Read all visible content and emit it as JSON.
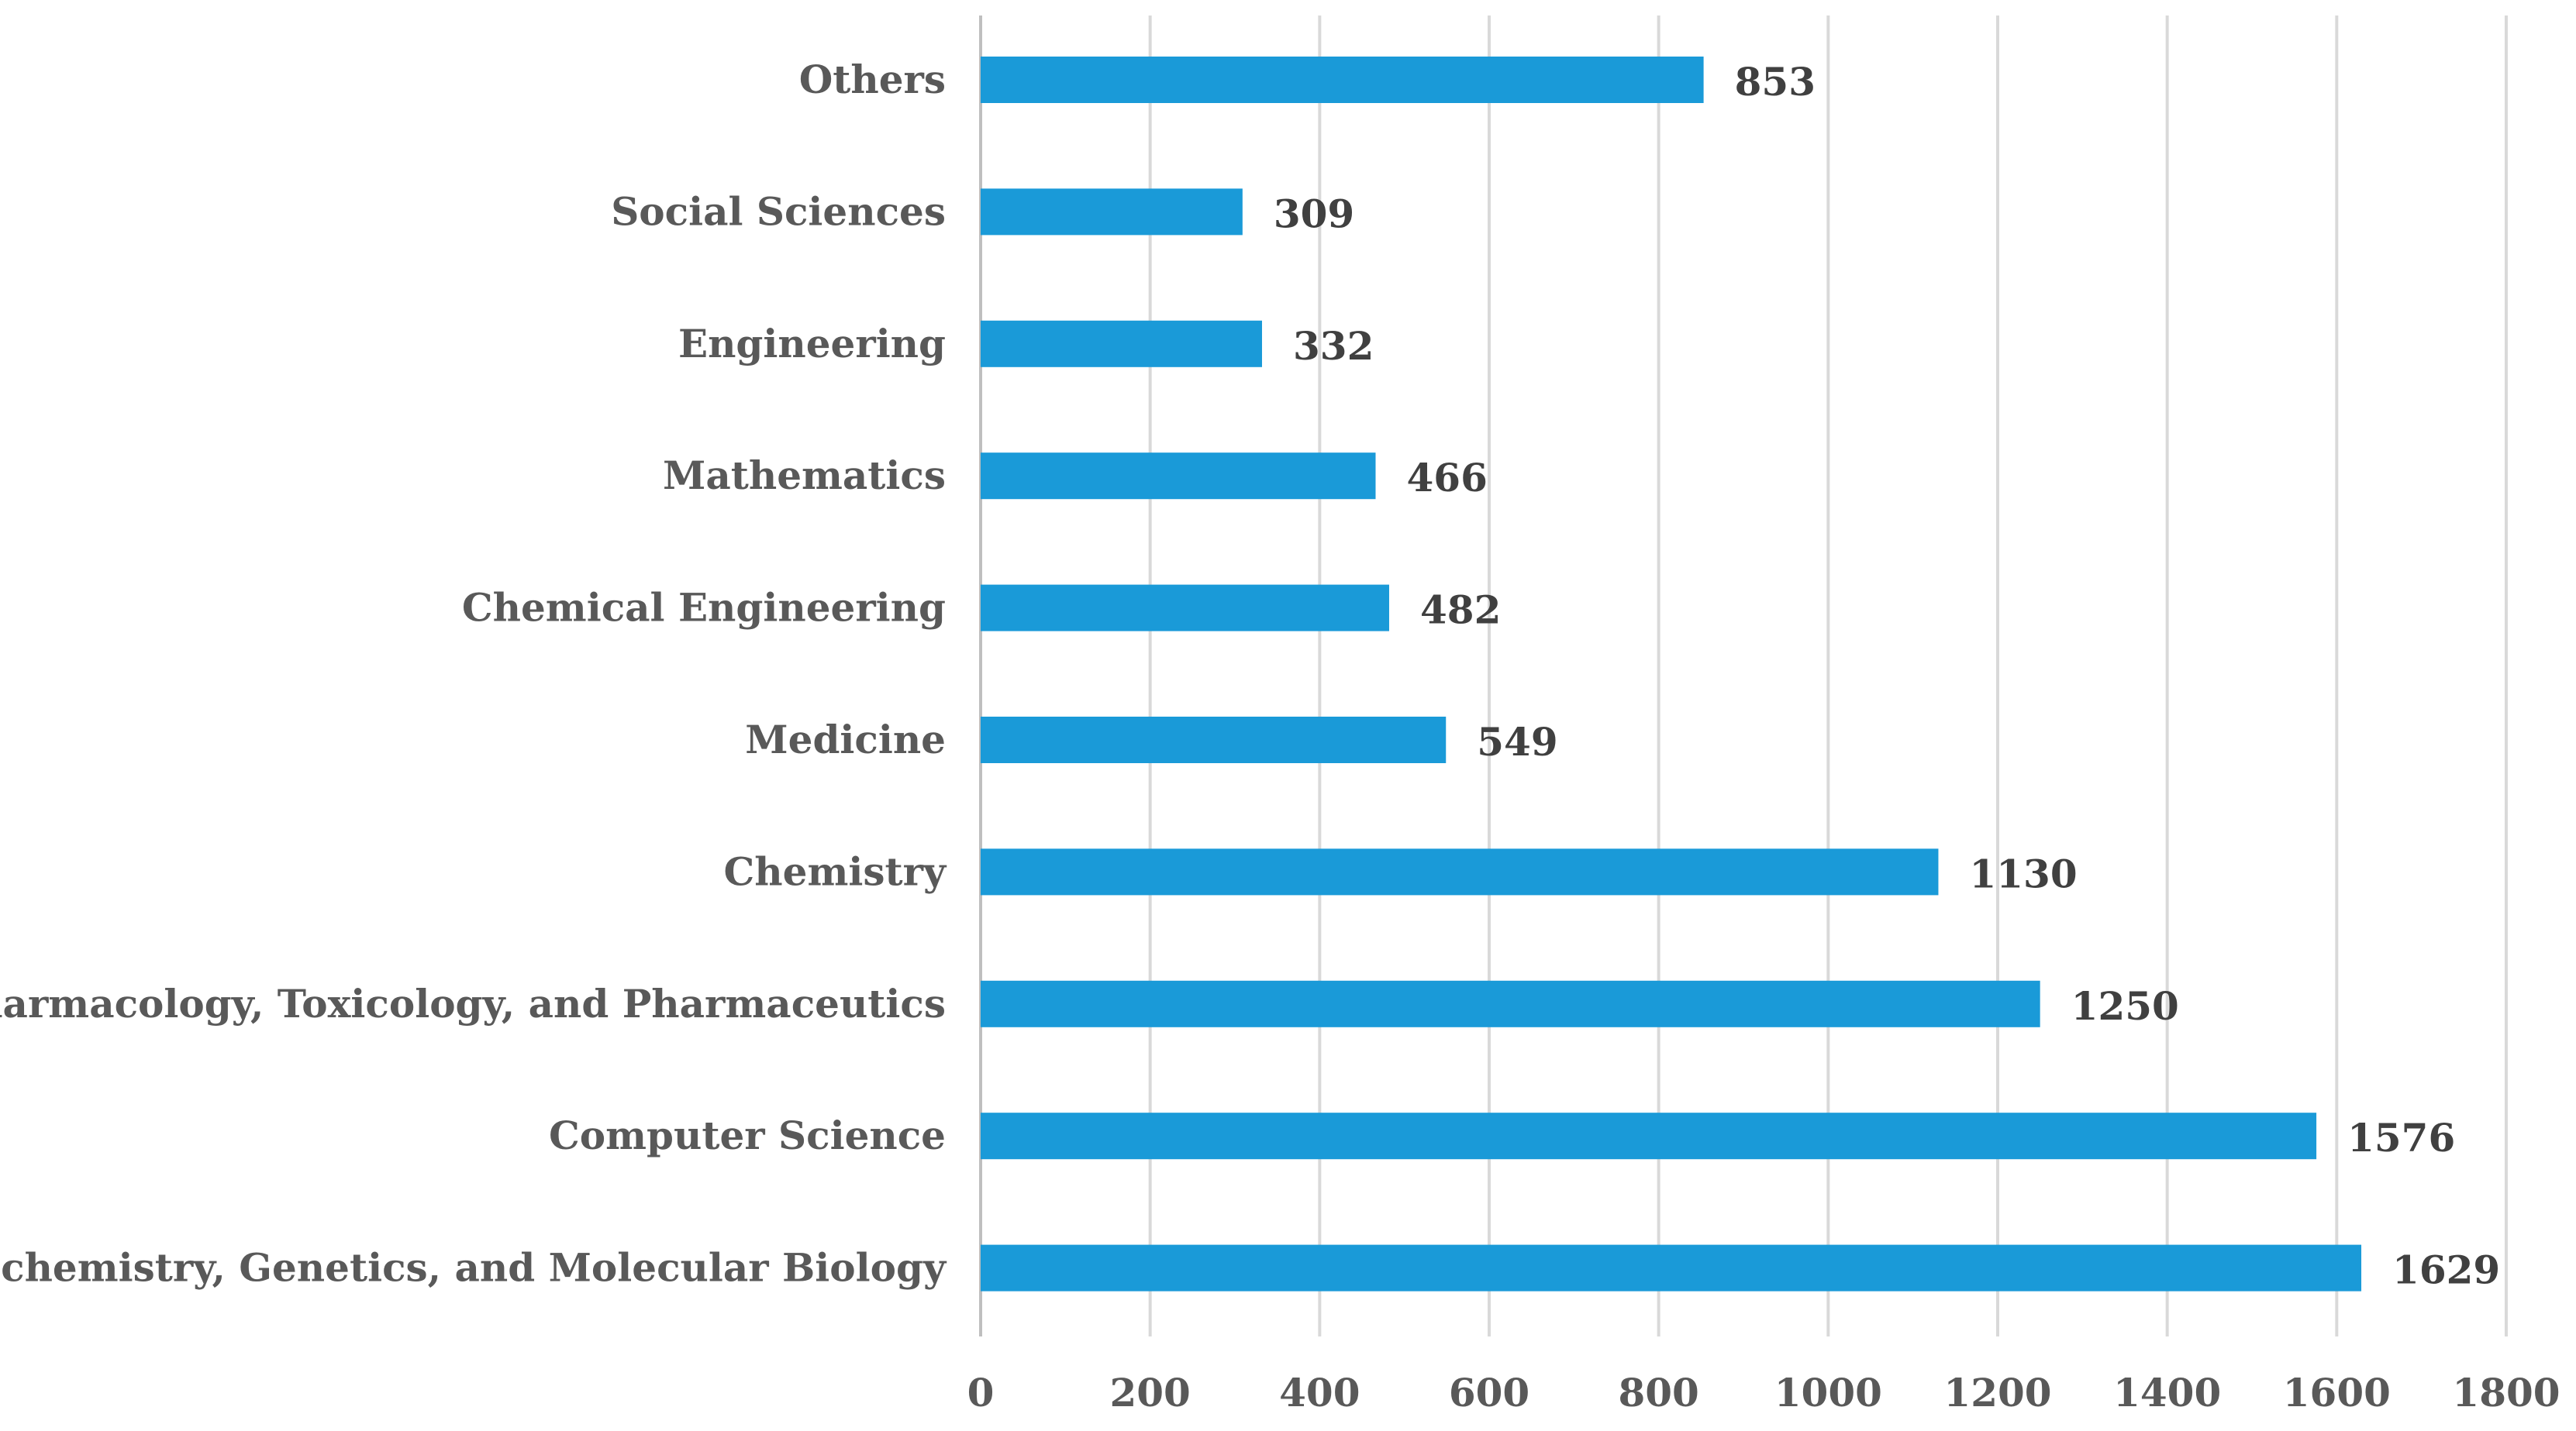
{
  "chart_data": {
    "type": "bar",
    "orientation": "horizontal",
    "title": "",
    "xlabel": "",
    "ylabel": "",
    "categories": [
      "Others",
      "Social Sciences",
      "Engineering",
      "Mathematics",
      "Chemical Engineering",
      "Medicine",
      "Chemistry",
      "Pharmacology, Toxicology, and Pharmaceutics",
      "Computer Science",
      "Biochemistry, Genetics, and Molecular Biology"
    ],
    "values": [
      853,
      309,
      332,
      466,
      482,
      549,
      1130,
      1250,
      1576,
      1629
    ],
    "data_labels": [
      "853",
      "309",
      "332",
      "466",
      "482",
      "549",
      "1130",
      "1250",
      "1576",
      "1629"
    ],
    "xlim": [
      0,
      1800
    ],
    "xticks": [
      0,
      200,
      400,
      600,
      800,
      1000,
      1200,
      1400,
      1600,
      1800
    ],
    "xtick_labels": [
      "0",
      "200",
      "400",
      "600",
      "800",
      "1000",
      "1200",
      "1400",
      "1600",
      "1800"
    ],
    "grid": true,
    "legend": "none",
    "bar_color": "#1a9ad8"
  }
}
